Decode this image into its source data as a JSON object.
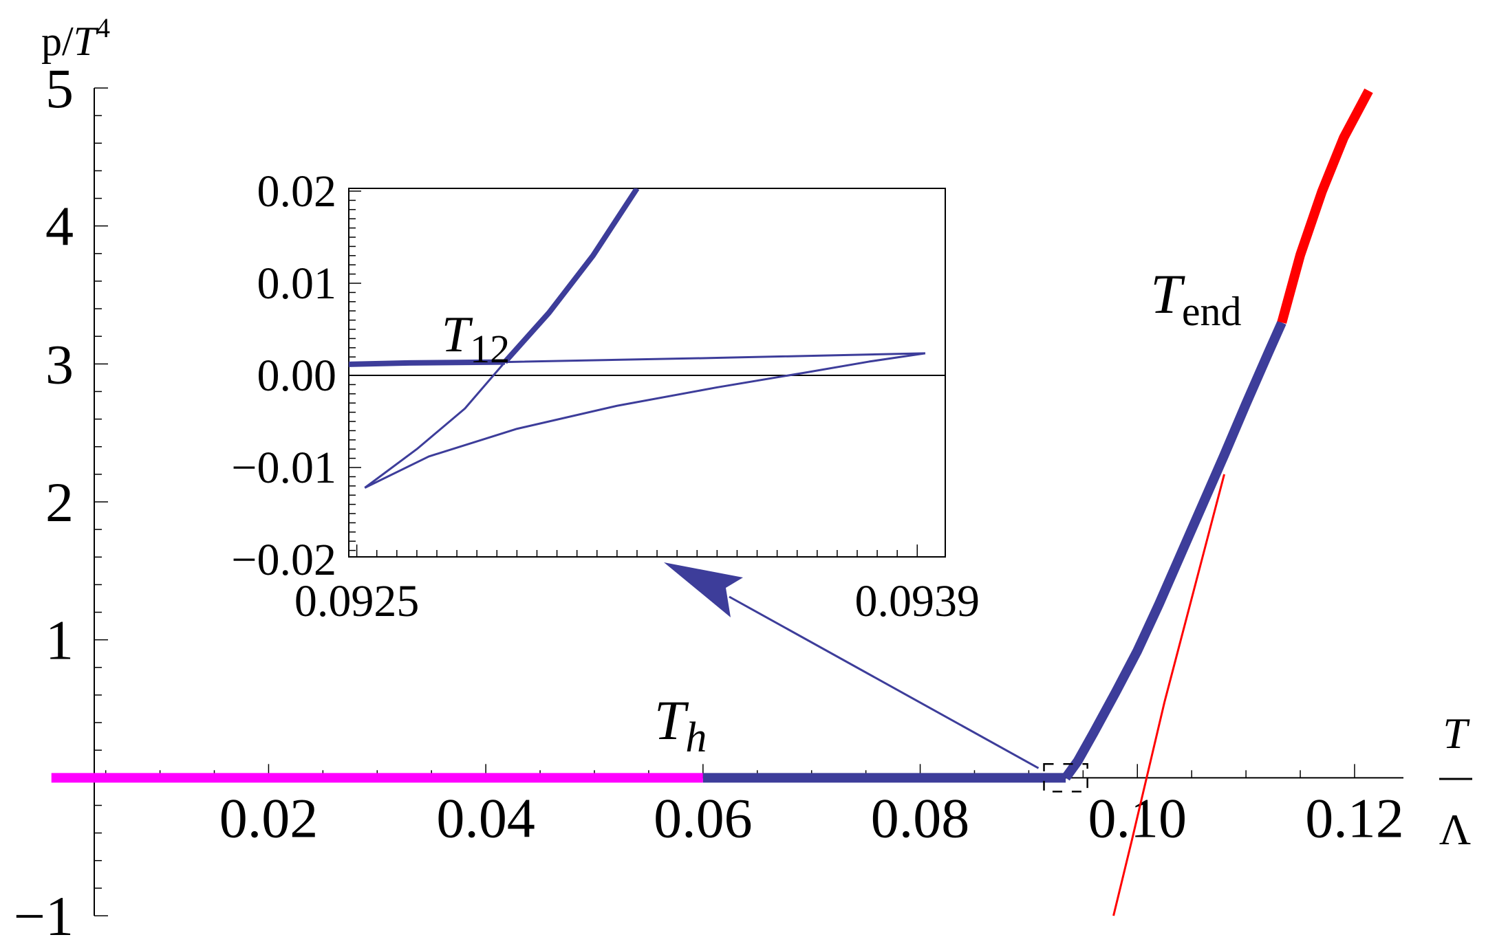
{
  "chart_data": {
    "type": "line",
    "xlabel_top": "T",
    "xlabel_bottom": "Λ",
    "ylabel_main": "p/",
    "ylabel_T": "T",
    "ylabel_exp": "4",
    "xlim": [
      -0.0003,
      0.1245
    ],
    "ylim": [
      -1.0,
      5.0
    ],
    "x_ticks": [
      0.02,
      0.04,
      0.06,
      0.08,
      0.1,
      0.12
    ],
    "x_tick_labels": [
      "0.02",
      "0.04",
      "0.06",
      "0.08",
      "0.10",
      "0.12"
    ],
    "y_ticks": [
      -1,
      1,
      2,
      3,
      4,
      5
    ],
    "y_tick_labels": [
      "−1",
      "1",
      "2",
      "3",
      "4",
      "5"
    ],
    "colors": {
      "confined": "#ff00ff",
      "blue": "#3d3d9a",
      "red": "#ff0000",
      "arrow": "#3d3d9a"
    },
    "series": [
      {
        "style": "thick",
        "color": "confined",
        "x": [
          0.0,
          0.06
        ],
        "y": [
          0.0,
          0.0
        ]
      },
      {
        "style": "thick",
        "color": "blue",
        "x": [
          0.06,
          0.0934
        ],
        "y": [
          0.0,
          0.0
        ]
      },
      {
        "style": "thick",
        "color": "blue",
        "x": [
          0.0934,
          0.0945,
          0.096,
          0.098,
          0.1,
          0.102,
          0.104,
          0.106,
          0.108,
          0.11,
          0.112,
          0.1133
        ],
        "y": [
          0.0,
          0.12,
          0.33,
          0.62,
          0.92,
          1.26,
          1.62,
          1.98,
          2.34,
          2.71,
          3.07,
          3.3
        ]
      },
      {
        "style": "thick",
        "color": "red",
        "x": [
          0.1133,
          0.115,
          0.117,
          0.119,
          0.1213
        ],
        "y": [
          3.3,
          3.79,
          4.25,
          4.64,
          4.98
        ]
      },
      {
        "style": "thin",
        "color": "red",
        "x": [
          0.0978,
          0.0995,
          0.101,
          0.1025,
          0.104,
          0.106,
          0.108
        ],
        "y": [
          -1.0,
          -0.45,
          0.05,
          0.55,
          1.0,
          1.6,
          2.2
        ]
      }
    ],
    "annotations": [
      {
        "text": "T",
        "sub": "h",
        "x": 0.0555,
        "y": 0.28
      },
      {
        "text": "T",
        "sub": "end",
        "x": 0.1012,
        "y": 3.37
      }
    ],
    "zoom_box": {
      "x": [
        0.0914,
        0.0954
      ],
      "y": [
        -0.1,
        0.1
      ]
    },
    "inset": {
      "xlim": [
        0.09248,
        0.09397
      ],
      "ylim": [
        -0.0197,
        0.0203
      ],
      "x_ticks": [
        0.0925,
        0.0939
      ],
      "x_tick_labels": [
        "0.0925",
        "0.0939"
      ],
      "y_ticks": [
        -0.02,
        -0.01,
        0.0,
        0.01,
        0.02
      ],
      "y_tick_labels": [
        "−0.02",
        "−0.01",
        "0.00",
        "0.01",
        "0.02"
      ],
      "label": {
        "text": "T",
        "sub": "12",
        "x": 0.09254,
        "y": 0.0032
      },
      "series": [
        {
          "style": "thick",
          "x": [
            0.09248,
            0.09263,
            0.09275,
            0.09287
          ],
          "y": [
            0.0012,
            0.00135,
            0.0014,
            0.00145
          ]
        },
        {
          "style": "thick",
          "x": [
            0.09287,
            0.09298,
            0.09309,
            0.0932
          ],
          "y": [
            0.00145,
            0.0068,
            0.013,
            0.0203
          ]
        },
        {
          "style": "thin",
          "x": [
            0.09252,
            0.09265,
            0.09277,
            0.09287
          ],
          "y": [
            -0.0122,
            -0.008,
            -0.0036,
            0.00145
          ]
        },
        {
          "style": "thin",
          "x": [
            0.09252,
            0.09268,
            0.0929,
            0.09315,
            0.0934,
            0.09362,
            0.09378,
            0.09392
          ],
          "y": [
            -0.0122,
            -0.0088,
            -0.0058,
            -0.0033,
            -0.0013,
            0.0003,
            0.0015,
            0.0024
          ]
        },
        {
          "style": "thin",
          "x": [
            0.09287,
            0.0934,
            0.09392
          ],
          "y": [
            0.00145,
            0.0019,
            0.0024
          ]
        }
      ]
    }
  }
}
